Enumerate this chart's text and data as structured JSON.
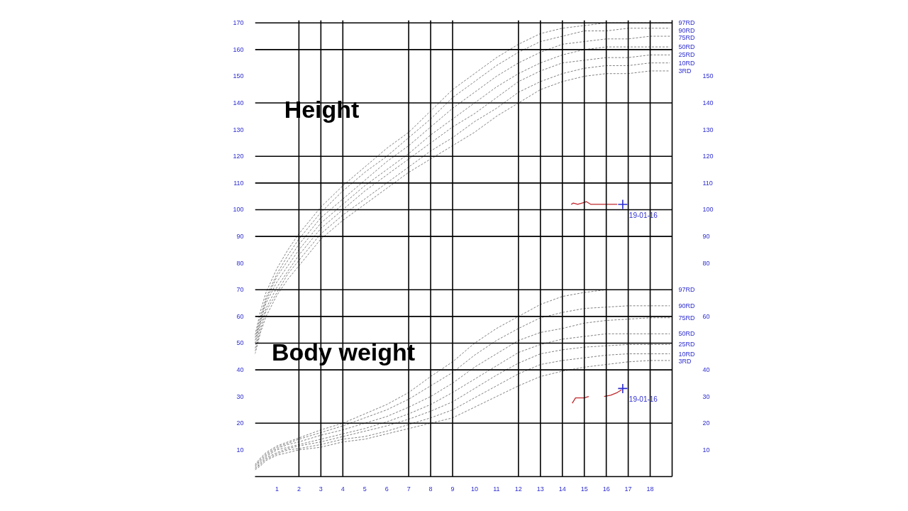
{
  "chart_data": {
    "type": "line",
    "line_style": "dashed",
    "xlim": [
      0,
      19
    ],
    "ylim": [
      0,
      171
    ],
    "y2lim": [
      0,
      171
    ],
    "xticks": [
      1,
      2,
      3,
      4,
      5,
      6,
      7,
      8,
      9,
      10,
      11,
      12,
      13,
      14,
      15,
      16,
      17,
      18
    ],
    "yticks": [
      10,
      20,
      30,
      40,
      50,
      60,
      70,
      80,
      90,
      100,
      110,
      120,
      130,
      140,
      150,
      160,
      170
    ],
    "y2ticks": [
      10,
      20,
      30,
      40,
      60,
      80,
      90,
      100,
      110,
      120,
      130,
      140,
      150
    ],
    "x": [
      0,
      0.25,
      0.5,
      1,
      1.5,
      2,
      3,
      4,
      5,
      6,
      7,
      8,
      9,
      10,
      11,
      12,
      13,
      14,
      15,
      16,
      17,
      18,
      18.9
    ],
    "series": [
      {
        "name": "97RD",
        "color": "#808080",
        "values": [
          53,
          62,
          69,
          78,
          85,
          91,
          101,
          109,
          116,
          123,
          129,
          137,
          145,
          151,
          157,
          162,
          166,
          168,
          169,
          170,
          170,
          170,
          170
        ]
      },
      {
        "name": "90RD",
        "color": "#808080",
        "values": [
          52,
          60,
          67,
          76,
          83,
          89,
          99,
          107,
          114,
          120,
          127,
          134,
          142,
          148,
          154,
          159,
          163,
          165,
          167,
          167,
          168,
          168,
          168
        ]
      },
      {
        "name": "75RD",
        "color": "#808080",
        "values": [
          51,
          59,
          66,
          75,
          81,
          87,
          97,
          104,
          111,
          118,
          124,
          131,
          138,
          144,
          150,
          155,
          159,
          162,
          163,
          164,
          164,
          165,
          165
        ]
      },
      {
        "name": "50RD",
        "color": "#808080",
        "values": [
          50,
          58,
          65,
          73,
          79,
          85,
          95,
          102,
          109,
          115,
          121,
          128,
          134,
          140,
          146,
          151,
          155,
          158,
          160,
          161,
          161,
          161,
          161
        ]
      },
      {
        "name": "25RD",
        "color": "#808080",
        "values": [
          48,
          57,
          63,
          71,
          77,
          83,
          93,
          100,
          107,
          113,
          119,
          125,
          131,
          136,
          142,
          148,
          152,
          155,
          156,
          157,
          157,
          158,
          158
        ]
      },
      {
        "name": "10RD",
        "color": "#808080",
        "values": [
          47,
          55,
          62,
          69,
          76,
          81,
          91,
          98,
          104,
          110,
          116,
          122,
          127,
          133,
          138,
          144,
          148,
          151,
          153,
          154,
          154,
          155,
          155
        ]
      },
      {
        "name": "3RD",
        "color": "#808080",
        "values": [
          46,
          54,
          60,
          68,
          74,
          79,
          89,
          96,
          102,
          108,
          114,
          119,
          124,
          129,
          135,
          140,
          145,
          148,
          150,
          151,
          151,
          152,
          152
        ]
      },
      {
        "name": "97RD",
        "color": "#808080",
        "values": [
          4.5,
          7,
          9,
          11.5,
          13,
          14.5,
          17.5,
          20,
          23.5,
          27,
          31.5,
          37.5,
          43,
          50,
          55.5,
          60,
          64.5,
          67.5,
          69,
          70,
          null,
          null,
          null
        ]
      },
      {
        "name": "90RD",
        "color": "#808080",
        "values": [
          4,
          6.5,
          8.5,
          11,
          12.5,
          14,
          16.5,
          19,
          22,
          25,
          29,
          34,
          39,
          45.5,
          51,
          55.5,
          59.5,
          61.5,
          63,
          63.5,
          64,
          64,
          64
        ]
      },
      {
        "name": "75RD",
        "color": "#808080",
        "values": [
          4,
          6,
          8,
          10.5,
          12,
          13,
          15.5,
          17.5,
          20,
          22.5,
          26,
          30,
          35,
          41,
          46,
          51,
          54,
          55.5,
          57.5,
          58.5,
          59,
          59.5,
          59.5
        ]
      },
      {
        "name": "50RD",
        "color": "#808080",
        "values": [
          3.5,
          5.5,
          7.5,
          10,
          11,
          12,
          14,
          16,
          18,
          20.5,
          23.5,
          27,
          31.5,
          36.5,
          41.5,
          46.5,
          49.5,
          51.5,
          52.5,
          53.5,
          53.5,
          53.5,
          53.5
        ]
      },
      {
        "name": "25RD",
        "color": "#808080",
        "values": [
          3,
          5,
          7,
          9,
          10.5,
          11.5,
          13,
          15,
          17,
          19,
          21.5,
          24.5,
          28,
          33,
          38,
          42.5,
          46,
          47.5,
          48.5,
          49,
          49.5,
          49.5,
          49.5
        ]
      },
      {
        "name": "10RD",
        "color": "#808080",
        "values": [
          3,
          4.5,
          6.5,
          8.5,
          10,
          10.5,
          12,
          14,
          15,
          17,
          19.5,
          22,
          25,
          29.5,
          34,
          38.5,
          42,
          43.5,
          44.5,
          45.5,
          46,
          46,
          46
        ]
      },
      {
        "name": "3RD",
        "color": "#808080",
        "values": [
          2.5,
          4,
          6,
          8,
          9,
          10,
          11,
          13,
          14,
          16,
          18,
          20,
          22,
          26,
          30,
          34,
          37.5,
          39.5,
          41,
          42,
          43,
          43.5,
          43.5
        ]
      },
      {
        "color": "#c0282d",
        "line_style": "solid",
        "x": [
          14.4,
          14.5,
          14.7,
          14.9,
          15.1,
          15.3,
          16.0,
          16.5
        ],
        "values": [
          102,
          102.5,
          102,
          102.5,
          103,
          102,
          102,
          102
        ]
      },
      {
        "color": "#c0282d",
        "line_style": "solid",
        "x": [
          14.45,
          14.6,
          14.8,
          15.0,
          15.2,
          15.5,
          15.9,
          16.2,
          16.5,
          16.7
        ],
        "values": [
          27.5,
          29.5,
          29.5,
          29.5,
          30,
          null,
          30,
          30.5,
          31.5,
          32.5
        ]
      },
      {
        "type": "scatter",
        "marker": "cross",
        "color": "#2b2bd0",
        "x": [
          16.75,
          16.75
        ],
        "values": [
          102,
          33
        ]
      }
    ],
    "ref_lines": [
      {
        "axis": "x",
        "value": 2,
        "color": "#000000"
      },
      {
        "axis": "x",
        "value": 3,
        "color": "#000000"
      },
      {
        "axis": "x",
        "value": 4,
        "color": "#000000"
      },
      {
        "axis": "x",
        "value": 7,
        "color": "#000000"
      },
      {
        "axis": "x",
        "value": 8,
        "color": "#000000"
      },
      {
        "axis": "x",
        "value": 9,
        "color": "#000000"
      },
      {
        "axis": "x",
        "value": 12,
        "color": "#000000"
      },
      {
        "axis": "x",
        "value": 13,
        "color": "#000000"
      },
      {
        "axis": "x",
        "value": 14,
        "color": "#000000"
      },
      {
        "axis": "x",
        "value": 15,
        "color": "#000000"
      },
      {
        "axis": "x",
        "value": 16,
        "color": "#000000"
      },
      {
        "axis": "x",
        "value": 17,
        "color": "#000000"
      },
      {
        "axis": "x",
        "value": 18,
        "color": "#000000"
      },
      {
        "axis": "y",
        "value": 170,
        "color": "#000000"
      },
      {
        "axis": "y",
        "value": 160,
        "color": "#000000"
      },
      {
        "axis": "y",
        "value": 140,
        "color": "#000000"
      },
      {
        "axis": "y",
        "value": 120,
        "color": "#000000"
      },
      {
        "axis": "y",
        "value": 110,
        "color": "#000000"
      },
      {
        "axis": "y",
        "value": 100,
        "color": "#000000"
      },
      {
        "axis": "y",
        "value": 90,
        "color": "#000000"
      },
      {
        "axis": "y",
        "value": 70,
        "color": "#000000"
      },
      {
        "axis": "y",
        "value": 60,
        "color": "#000000"
      },
      {
        "axis": "y",
        "value": 50,
        "color": "#000000"
      },
      {
        "axis": "y",
        "value": 40,
        "color": "#000000"
      },
      {
        "axis": "y",
        "value": 20,
        "color": "#000000"
      }
    ],
    "annotations": [
      "Height",
      "Body weight",
      {
        "text": "19-01-16",
        "x": 16.75,
        "y": 102
      },
      {
        "text": "19-01-16",
        "x": 16.75,
        "y": 33
      }
    ]
  }
}
